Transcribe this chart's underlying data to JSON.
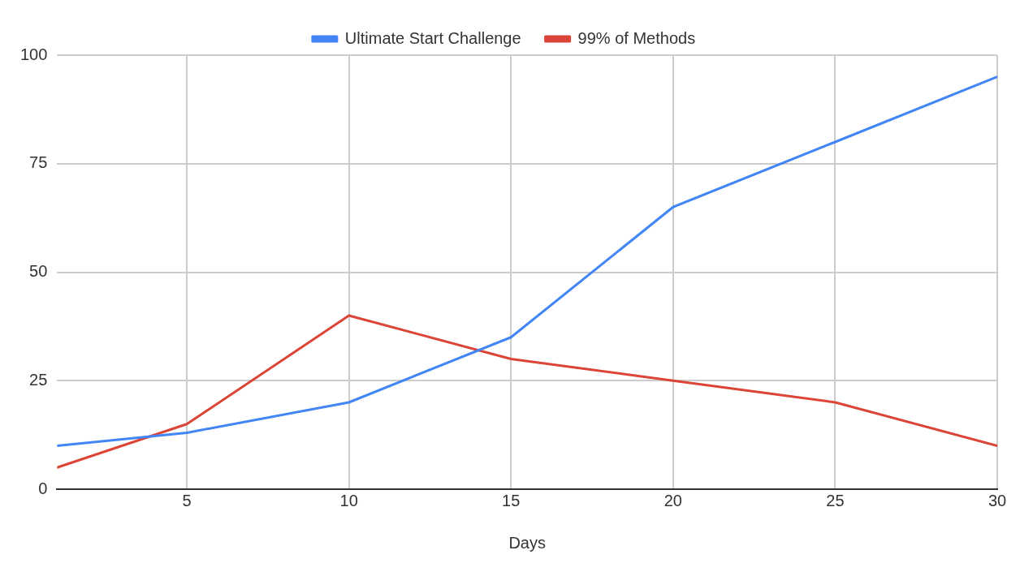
{
  "chart_data": {
    "type": "line",
    "xlabel": "Days",
    "x": [
      1,
      5,
      10,
      15,
      20,
      25,
      30
    ],
    "series": [
      {
        "name": "Ultimate Start Challenge",
        "color": "#4285f4",
        "values": [
          10,
          13,
          20,
          35,
          65,
          80,
          95
        ]
      },
      {
        "name": "99% of Methods",
        "color": "#db4437",
        "values": [
          5,
          15,
          40,
          30,
          25,
          20,
          10
        ]
      }
    ],
    "xlim": [
      1,
      30
    ],
    "xticks": [
      5,
      10,
      15,
      20,
      25,
      30
    ],
    "ylim": [
      0,
      100
    ],
    "yticks": [
      0,
      25,
      50,
      75,
      100
    ],
    "grid": true,
    "legend": "top",
    "marker": "none",
    "line_style": "solid"
  }
}
